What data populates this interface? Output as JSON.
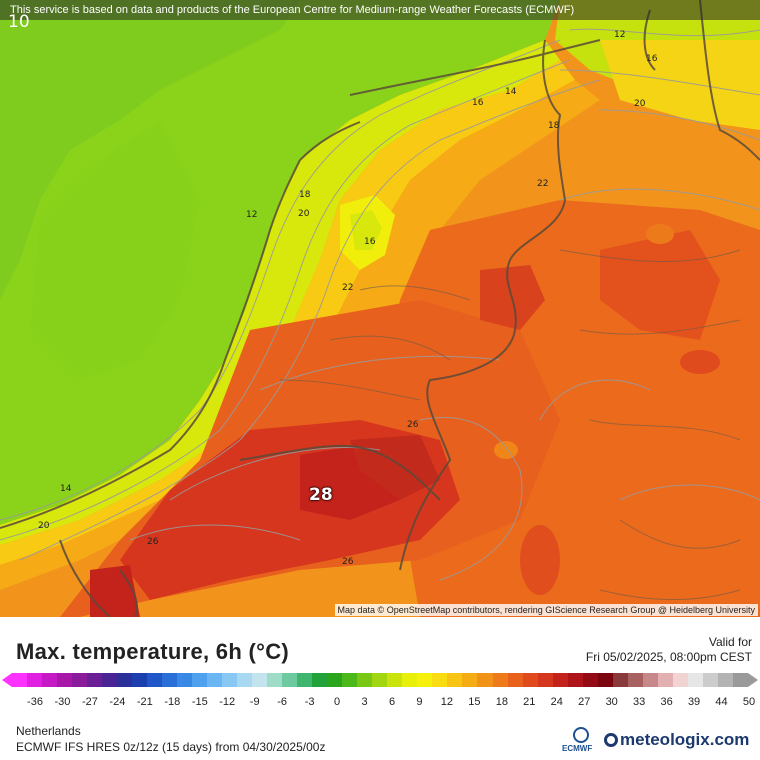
{
  "banner": "This service is based on data and products of the European Centre for Medium-range Weather Forecasts (ECMWF)",
  "corner_label": "10",
  "attribution": "Map data © OpenStreetMap contributors, rendering GIScience Research Group @ Heidelberg University",
  "isolines": [
    "12",
    "16",
    "14",
    "16",
    "20",
    "18",
    "22",
    "18",
    "20",
    "12",
    "16",
    "22",
    "26",
    "14",
    "20",
    "26",
    "26"
  ],
  "highlight_value": "28",
  "title": "Max. temperature, 6h (°C)",
  "valid_label": "Valid for",
  "valid_date": "Fri 05/02/2025, 08:00pm CEST",
  "scale_ticks": [
    "-36",
    "-30",
    "-27",
    "-24",
    "-21",
    "-18",
    "-15",
    "-12",
    "-9",
    "-6",
    "-3",
    "0",
    "3",
    "6",
    "9",
    "12",
    "15",
    "18",
    "21",
    "24",
    "27",
    "30",
    "33",
    "36",
    "39",
    "44",
    "50"
  ],
  "scale_colors": [
    "#ff33ff",
    "#e01fe0",
    "#c51ac5",
    "#a817a8",
    "#8a1b9a",
    "#6a1f96",
    "#4a2394",
    "#2b2f9a",
    "#1c3fb0",
    "#1f56c8",
    "#2a6fd8",
    "#3a88e6",
    "#4fa0ef",
    "#6ab6f4",
    "#8ac8f4",
    "#a8d8f2",
    "#c3e4ef",
    "#9fdcc8",
    "#6cc9a0",
    "#3fb56f",
    "#22a23b",
    "#2aa51c",
    "#4db81a",
    "#78c815",
    "#a2d710",
    "#c9e30b",
    "#e8ef08",
    "#f6f10a",
    "#f9dc12",
    "#f9c514",
    "#f5ad15",
    "#f19317",
    "#ee7a1a",
    "#e8611d",
    "#e04b1e",
    "#d5361d",
    "#c4231b",
    "#ae1418",
    "#950b15",
    "#7c0610",
    "#8a3a3a",
    "#a86060",
    "#c68888",
    "#e2b0b0",
    "#f2d3d3",
    "#e6e6e6",
    "#cccccc",
    "#b3b3b3",
    "#9a9a9a"
  ],
  "region": "Netherlands",
  "model": "ECMWF IFS HRES 0z/12z (15 days)  from  04/30/2025/00z",
  "brand": "meteologix.com",
  "ecmwf_text": "ECMWF"
}
